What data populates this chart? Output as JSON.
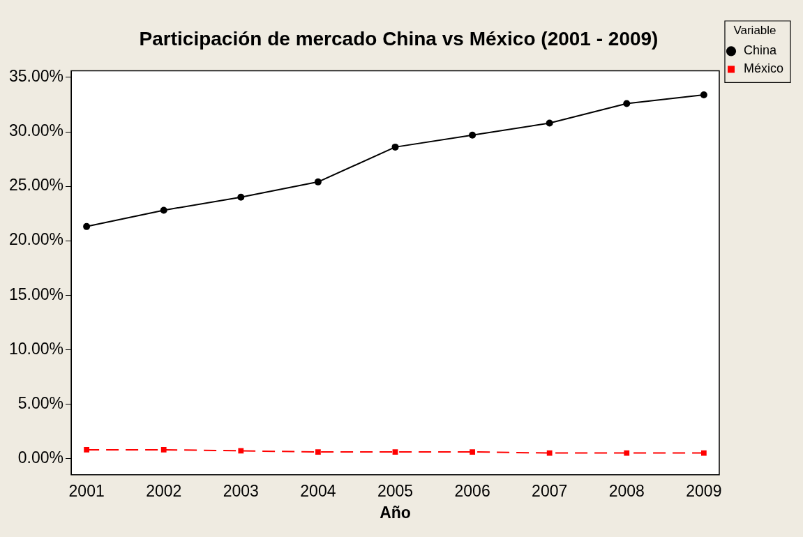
{
  "chart_data": {
    "type": "line",
    "title": "Participación de mercado China vs México (2001 - 2009)",
    "xlabel": "Año",
    "legend_title": "Variable",
    "legend": "right",
    "grid": false,
    "x": [
      2001,
      2002,
      2003,
      2004,
      2005,
      2006,
      2007,
      2008,
      2009
    ],
    "xlim": [
      2000.8,
      2009.2
    ],
    "xticks": [
      2001,
      2002,
      2003,
      2004,
      2005,
      2006,
      2007,
      2008,
      2009
    ],
    "ylim": [
      -1.5,
      35.6
    ],
    "yticks": [
      {
        "value": 0,
        "label": "0.00%"
      },
      {
        "value": 5,
        "label": "5.00%"
      },
      {
        "value": 10,
        "label": "10.00%"
      },
      {
        "value": 15,
        "label": "15.00%"
      },
      {
        "value": 20,
        "label": "20.00%"
      },
      {
        "value": 25,
        "label": "25.00%"
      },
      {
        "value": 30,
        "label": "30.00%"
      },
      {
        "value": 35,
        "label": "35.00%"
      }
    ],
    "series": [
      {
        "name": "China",
        "color": "#000000",
        "marker": "circle",
        "line_style": "solid",
        "values": [
          21.3,
          22.8,
          24.0,
          25.4,
          28.6,
          29.7,
          30.8,
          32.6,
          33.4
        ]
      },
      {
        "name": "México",
        "color": "#ff0000",
        "marker": "square",
        "line_style": "dashed",
        "values": [
          0.8,
          0.8,
          0.7,
          0.6,
          0.6,
          0.6,
          0.5,
          0.5,
          0.5
        ]
      }
    ]
  }
}
